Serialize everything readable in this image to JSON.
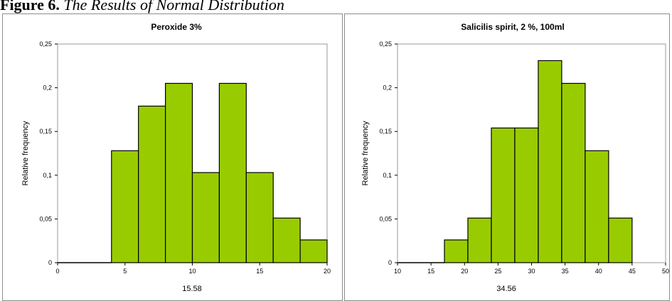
{
  "figure": {
    "label": "Figure 6.",
    "caption": "The Results of Normal Distribution"
  },
  "chart_data": [
    {
      "type": "bar",
      "title": "Peroxide 3%",
      "xlabel": "15.58",
      "ylabel": "Relative frequency",
      "xlim": [
        0,
        20
      ],
      "ylim": [
        0,
        0.25
      ],
      "xticks": [
        "0",
        "5",
        "10",
        "15",
        "20"
      ],
      "yticks": [
        "0",
        "0,05",
        "0,1",
        "0,15",
        "0,2",
        "0,25"
      ],
      "bins": [
        {
          "x0": 4,
          "x1": 6,
          "value": 0.128
        },
        {
          "x0": 6,
          "x1": 8,
          "value": 0.179
        },
        {
          "x0": 8,
          "x1": 10,
          "value": 0.205
        },
        {
          "x0": 10,
          "x1": 12,
          "value": 0.103
        },
        {
          "x0": 12,
          "x1": 14,
          "value": 0.205
        },
        {
          "x0": 14,
          "x1": 16,
          "value": 0.103
        },
        {
          "x0": 16,
          "x1": 18,
          "value": 0.051
        },
        {
          "x0": 18,
          "x1": 20,
          "value": 0.026
        }
      ],
      "baseline_from": 0,
      "bar_color": "#99cc00",
      "grid": false
    },
    {
      "type": "bar",
      "title": "Salicilis spirit, 2 %, 100ml",
      "xlabel": "34.56",
      "ylabel": "Relative frequency",
      "xlim": [
        10,
        50
      ],
      "ylim": [
        0,
        0.25
      ],
      "xticks": [
        "10",
        "15",
        "20",
        "25",
        "30",
        "35",
        "40",
        "45",
        "50"
      ],
      "yticks": [
        "0",
        "0,05",
        "0,1",
        "0,15",
        "0,2",
        "0,25"
      ],
      "bins": [
        {
          "x0": 17,
          "x1": 20.5,
          "value": 0.026
        },
        {
          "x0": 20.5,
          "x1": 24,
          "value": 0.051
        },
        {
          "x0": 24,
          "x1": 27.5,
          "value": 0.154
        },
        {
          "x0": 27.5,
          "x1": 31,
          "value": 0.154
        },
        {
          "x0": 31,
          "x1": 34.5,
          "value": 0.231
        },
        {
          "x0": 34.5,
          "x1": 38,
          "value": 0.205
        },
        {
          "x0": 38,
          "x1": 41.5,
          "value": 0.128
        },
        {
          "x0": 41.5,
          "x1": 45,
          "value": 0.051
        }
      ],
      "baseline_from": 10,
      "bar_color": "#99cc00",
      "grid": false
    }
  ]
}
